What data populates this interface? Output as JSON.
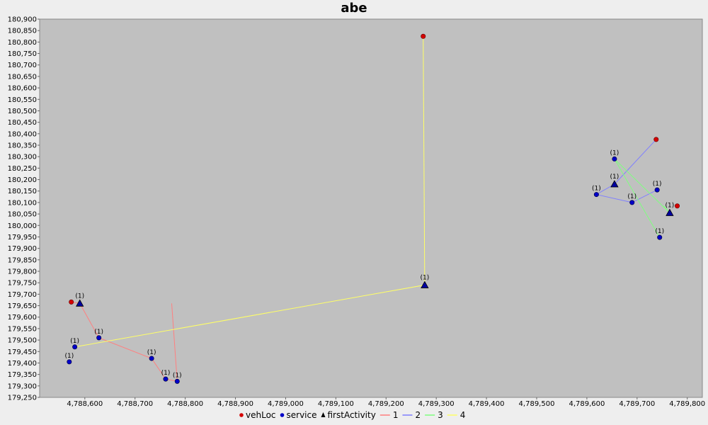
{
  "chart_data": {
    "type": "scatter",
    "title": "abe",
    "xlim": [
      4788510,
      4789830
    ],
    "ylim": [
      179250,
      180900
    ],
    "x_ticks": [
      4788600,
      4788700,
      4788800,
      4788900,
      4789000,
      4789100,
      4789200,
      4789300,
      4789400,
      4789500,
      4789600,
      4789700,
      4789800
    ],
    "y_ticks": [
      179250,
      179300,
      179350,
      179400,
      179450,
      179500,
      179550,
      179600,
      179650,
      179700,
      179750,
      179800,
      179850,
      179900,
      179950,
      180000,
      180050,
      180100,
      180150,
      180200,
      180250,
      180300,
      180350,
      180400,
      180450,
      180500,
      180550,
      180600,
      180650,
      180700,
      180750,
      180800,
      180850,
      180900
    ],
    "grid": false,
    "legend_position": "bottom",
    "colors": {
      "plot_bg": "#c0c0c0",
      "vehLoc": "#d40000",
      "service": "#0000c8",
      "firstActivity": "#0000a0",
      "route_1": "#ff7f7f",
      "route_2": "#7f7fff",
      "route_3": "#7fff7f",
      "route_4": "#ffff66"
    },
    "legend": [
      {
        "name": "vehLoc",
        "marker": "circle",
        "color": "#d40000"
      },
      {
        "name": "service",
        "marker": "circle",
        "color": "#0000c8"
      },
      {
        "name": "firstActivity",
        "marker": "triangle",
        "color": "#000000"
      },
      {
        "name": "1",
        "marker": "line",
        "color": "#ff7f7f"
      },
      {
        "name": "2",
        "marker": "line",
        "color": "#7f7fff"
      },
      {
        "name": "3",
        "marker": "line",
        "color": "#7fff7f"
      },
      {
        "name": "4",
        "marker": "line",
        "color": "#ffff66"
      }
    ],
    "routes": [
      {
        "name": "1",
        "points": [
          [
            4788573,
            179666
          ],
          [
            4788590,
            179660
          ],
          [
            4788628,
            179510
          ],
          [
            4788733,
            179420
          ],
          [
            4788761,
            179330
          ],
          [
            4788784,
            179320
          ],
          [
            4788773,
            179660
          ]
        ],
        "closed": false
      },
      {
        "name": "2",
        "points": [
          [
            4789738,
            180375
          ],
          [
            4789655,
            180180
          ],
          [
            4789619,
            180135
          ],
          [
            4789690,
            180100
          ],
          [
            4789740,
            180155
          ]
        ],
        "closed": false
      },
      {
        "name": "3",
        "points": [
          [
            4789753,
            180085
          ],
          [
            4789765,
            180055
          ],
          [
            4789655,
            180290
          ],
          [
            4789745,
            179948
          ]
        ],
        "closed": false
      },
      {
        "name": "4",
        "points": [
          [
            4789274,
            180825
          ],
          [
            4789277,
            179740
          ],
          [
            4788580,
            179470
          ]
        ],
        "closed": false
      }
    ],
    "vehLoc": [
      {
        "x": 4788573,
        "y": 179666
      },
      {
        "x": 4789274,
        "y": 180825
      },
      {
        "x": 4789738,
        "y": 180375
      },
      {
        "x": 4789780,
        "y": 180085
      }
    ],
    "service": [
      {
        "x": 4788628,
        "y": 179510,
        "label": "(1)"
      },
      {
        "x": 4788580,
        "y": 179470,
        "label": "(1)"
      },
      {
        "x": 4788569,
        "y": 179405,
        "label": "(1)"
      },
      {
        "x": 4788733,
        "y": 179420,
        "label": "(1)"
      },
      {
        "x": 4788761,
        "y": 179330,
        "label": "(1)"
      },
      {
        "x": 4788784,
        "y": 179320,
        "label": "(1)"
      },
      {
        "x": 4789655,
        "y": 180290,
        "label": "(1)"
      },
      {
        "x": 4789619,
        "y": 180135,
        "label": "(1)"
      },
      {
        "x": 4789690,
        "y": 180100,
        "label": "(1)"
      },
      {
        "x": 4789740,
        "y": 180155,
        "label": "(1)"
      },
      {
        "x": 4789745,
        "y": 179948,
        "label": "(1)"
      }
    ],
    "firstActivity": [
      {
        "x": 4788590,
        "y": 179660,
        "label": "(1)"
      },
      {
        "x": 4789277,
        "y": 179740,
        "label": "(1)"
      },
      {
        "x": 4789655,
        "y": 180180,
        "label": "(1)"
      },
      {
        "x": 4789765,
        "y": 180055,
        "label": "(1)"
      }
    ]
  }
}
